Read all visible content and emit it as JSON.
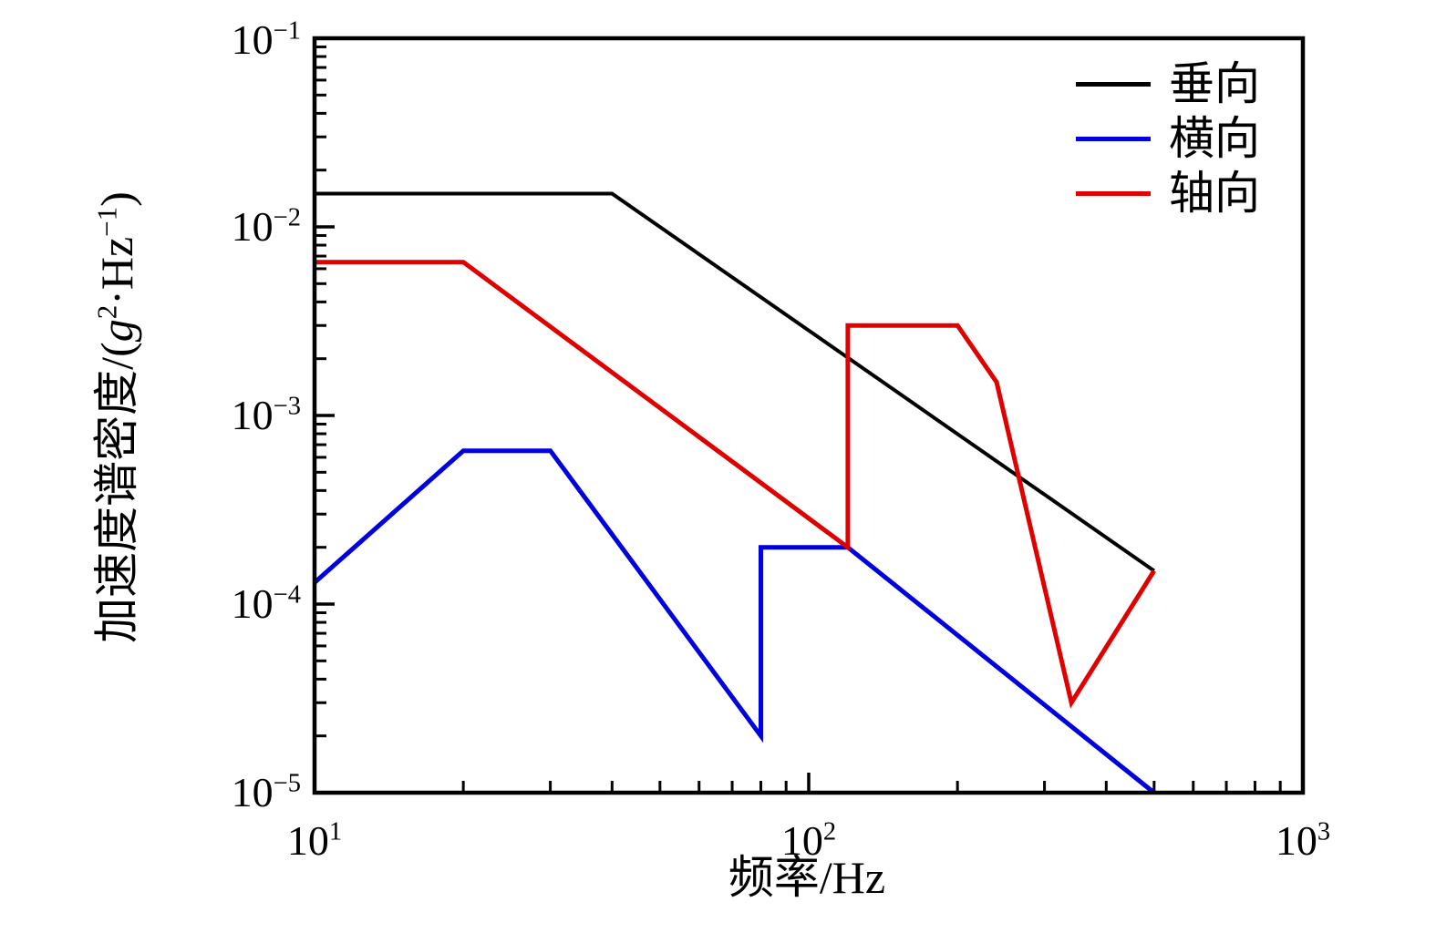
{
  "chart_data": {
    "type": "line",
    "x_scale": "log",
    "y_scale": "log",
    "xlabel": "频率/Hz",
    "ylabel": "加速度谱密度/(g²·Hz⁻¹)",
    "ylabel_parts": {
      "prefix": "加速度谱密度/(",
      "g": "g",
      "g_sup": "2",
      "dot": "·",
      "hz": "Hz",
      "hz_sup": "−1",
      "close": ")"
    },
    "xlim": [
      10,
      1000
    ],
    "ylim": [
      1e-05,
      0.1
    ],
    "grid": false,
    "legend_position": "upper right",
    "x_ticks": [
      {
        "base": "10",
        "exp": "1"
      },
      {
        "base": "10",
        "exp": "2"
      },
      {
        "base": "10",
        "exp": "3"
      }
    ],
    "y_ticks": [
      {
        "base": "10",
        "exp": "−1"
      },
      {
        "base": "10",
        "exp": "−2"
      },
      {
        "base": "10",
        "exp": "−3"
      },
      {
        "base": "10",
        "exp": "−4"
      },
      {
        "base": "10",
        "exp": "−5"
      }
    ],
    "series": [
      {
        "name": "垂向",
        "color": "#000000",
        "points": [
          [
            10,
            0.015
          ],
          [
            40,
            0.015
          ],
          [
            500,
            0.00015
          ]
        ]
      },
      {
        "name": "横向",
        "color": "#0000e0",
        "points": [
          [
            10,
            0.00013
          ],
          [
            20,
            0.00065
          ],
          [
            30,
            0.00065
          ],
          [
            80,
            2e-05
          ],
          [
            80,
            0.0002
          ],
          [
            120,
            0.0002
          ],
          [
            500,
            1e-05
          ]
        ]
      },
      {
        "name": "轴向",
        "color": "#e00000",
        "points": [
          [
            10,
            0.0065
          ],
          [
            20,
            0.0065
          ],
          [
            120,
            0.0002
          ],
          [
            120,
            0.003
          ],
          [
            200,
            0.003
          ],
          [
            240,
            0.0015
          ],
          [
            340,
            3e-05
          ],
          [
            500,
            0.00015
          ]
        ]
      }
    ]
  },
  "legend": {
    "items": [
      {
        "label": "垂向",
        "color": "#000000"
      },
      {
        "label": "横向",
        "color": "#0000e0"
      },
      {
        "label": "轴向",
        "color": "#e00000"
      }
    ]
  }
}
